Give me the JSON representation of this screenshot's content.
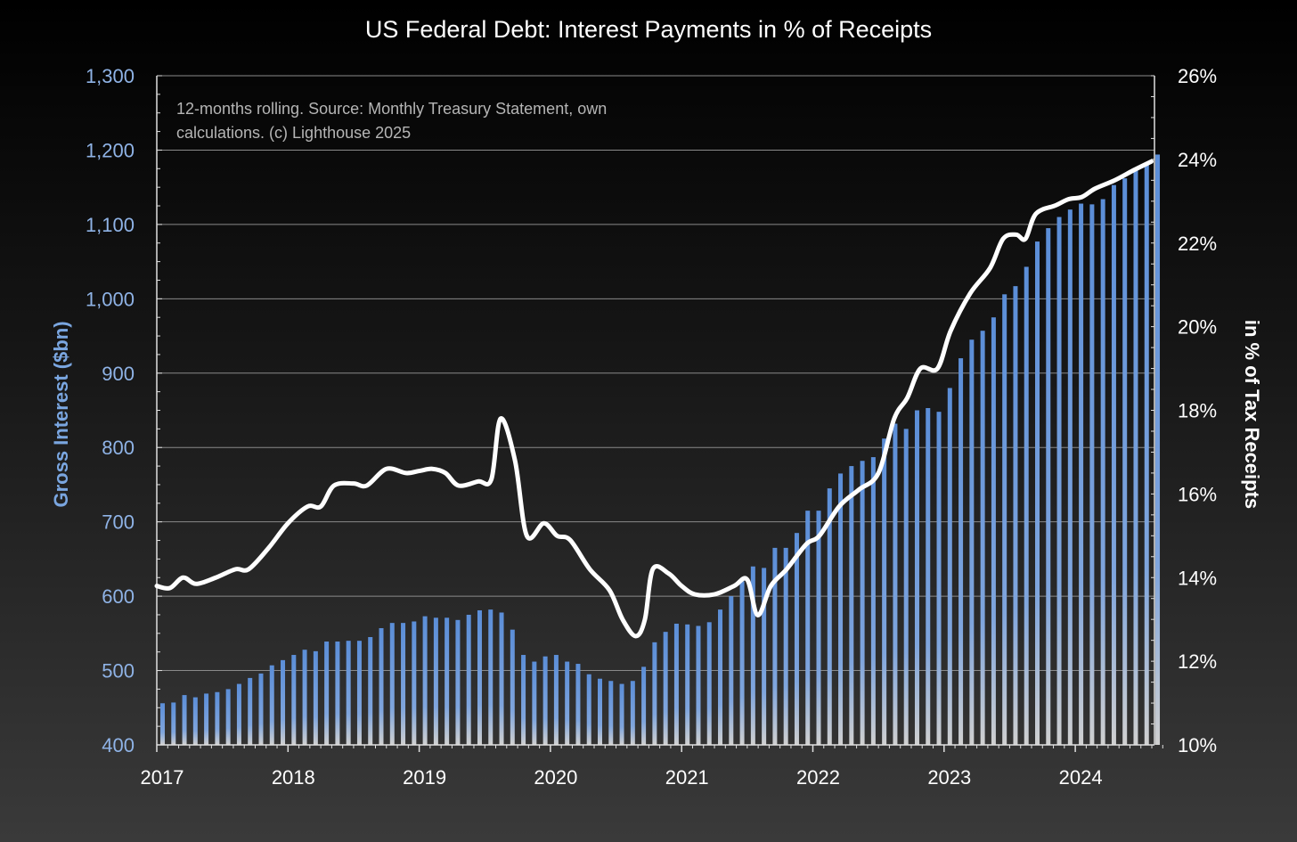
{
  "title": "US Federal Debt: Interest Payments in % of Receipts",
  "note_lines": [
    "12-months rolling. Source: Monthly Treasury Statement, own",
    "calculations. (c) Lighthouse 2025"
  ],
  "colors": {
    "bars": "#5b8ed8",
    "line": "#ffffff",
    "left_axis": "#8fb3e6",
    "grid": "#8a8a8a"
  },
  "chart_data": {
    "type": "bar+line",
    "title": "US Federal Debt: Interest Payments in % of Receipts",
    "ylabel_left": "Gross Interest ($bn)",
    "ylabel_right": "in % of Tax Receipts",
    "ylim_left": [
      400,
      1300
    ],
    "ylim_right": [
      10,
      26
    ],
    "yticks_left": [
      "400",
      "500",
      "600",
      "700",
      "800",
      "900",
      "1,000",
      "1,100",
      "1,200",
      "1,300"
    ],
    "yticks_right": [
      "10%",
      "12%",
      "14%",
      "16%",
      "18%",
      "20%",
      "22%",
      "24%",
      "26%"
    ],
    "xticks": [
      "2017",
      "2018",
      "2019",
      "2020",
      "2021",
      "2022",
      "2023",
      "2024"
    ],
    "grid": true,
    "bar_series": {
      "name": "Gross Interest ($bn)",
      "values": [
        456,
        457,
        467,
        464,
        469,
        471,
        475,
        482,
        490,
        496,
        507,
        514,
        521,
        528,
        526,
        539,
        539,
        540,
        540,
        545,
        557,
        564,
        564,
        566,
        573,
        571,
        571,
        568,
        575,
        581,
        582,
        578,
        555,
        521,
        512,
        519,
        521,
        512,
        509,
        495,
        489,
        486,
        482,
        486,
        505,
        538,
        552,
        563,
        562,
        560,
        565,
        582,
        600,
        620,
        640,
        638,
        665,
        665,
        685,
        715,
        715,
        745,
        765,
        775,
        782,
        787,
        812,
        832,
        825,
        850,
        853,
        848,
        880,
        920,
        945,
        957,
        975,
        1006,
        1017,
        1043,
        1077,
        1095,
        1110,
        1120,
        1128,
        1127,
        1134,
        1153,
        1162,
        1173,
        1180,
        1194
      ]
    },
    "line_series": {
      "name": "in % of Tax Receipts",
      "points": [
        [
          2017.0,
          13.8
        ],
        [
          2017.1,
          13.75
        ],
        [
          2017.2,
          14.0
        ],
        [
          2017.3,
          13.85
        ],
        [
          2017.45,
          14.0
        ],
        [
          2017.6,
          14.2
        ],
        [
          2017.7,
          14.2
        ],
        [
          2017.85,
          14.7
        ],
        [
          2018.0,
          15.3
        ],
        [
          2018.15,
          15.7
        ],
        [
          2018.25,
          15.7
        ],
        [
          2018.35,
          16.2
        ],
        [
          2018.5,
          16.25
        ],
        [
          2018.6,
          16.2
        ],
        [
          2018.75,
          16.6
        ],
        [
          2018.9,
          16.5
        ],
        [
          2019.0,
          16.55
        ],
        [
          2019.1,
          16.6
        ],
        [
          2019.2,
          16.5
        ],
        [
          2019.3,
          16.2
        ],
        [
          2019.45,
          16.3
        ],
        [
          2019.55,
          16.35
        ],
        [
          2019.62,
          17.8
        ],
        [
          2019.73,
          16.8
        ],
        [
          2019.82,
          15.0
        ],
        [
          2019.95,
          15.3
        ],
        [
          2020.05,
          15.0
        ],
        [
          2020.15,
          14.9
        ],
        [
          2020.3,
          14.2
        ],
        [
          2020.45,
          13.7
        ],
        [
          2020.55,
          13.0
        ],
        [
          2020.65,
          12.6
        ],
        [
          2020.72,
          13.0
        ],
        [
          2020.78,
          14.2
        ],
        [
          2020.9,
          14.1
        ],
        [
          2021.0,
          13.8
        ],
        [
          2021.1,
          13.6
        ],
        [
          2021.25,
          13.6
        ],
        [
          2021.4,
          13.8
        ],
        [
          2021.5,
          13.95
        ],
        [
          2021.58,
          13.1
        ],
        [
          2021.68,
          13.8
        ],
        [
          2021.8,
          14.2
        ],
        [
          2021.95,
          14.8
        ],
        [
          2022.05,
          15.0
        ],
        [
          2022.2,
          15.7
        ],
        [
          2022.35,
          16.1
        ],
        [
          2022.5,
          16.5
        ],
        [
          2022.62,
          17.8
        ],
        [
          2022.72,
          18.3
        ],
        [
          2022.82,
          19.0
        ],
        [
          2022.95,
          19.0
        ],
        [
          2023.05,
          19.9
        ],
        [
          2023.2,
          20.8
        ],
        [
          2023.35,
          21.4
        ],
        [
          2023.45,
          22.1
        ],
        [
          2023.55,
          22.2
        ],
        [
          2023.62,
          22.1
        ],
        [
          2023.7,
          22.7
        ],
        [
          2023.85,
          22.9
        ],
        [
          2023.95,
          23.05
        ],
        [
          2024.05,
          23.1
        ],
        [
          2024.15,
          23.3
        ],
        [
          2024.3,
          23.5
        ],
        [
          2024.45,
          23.75
        ],
        [
          2024.58,
          23.95
        ]
      ]
    }
  }
}
